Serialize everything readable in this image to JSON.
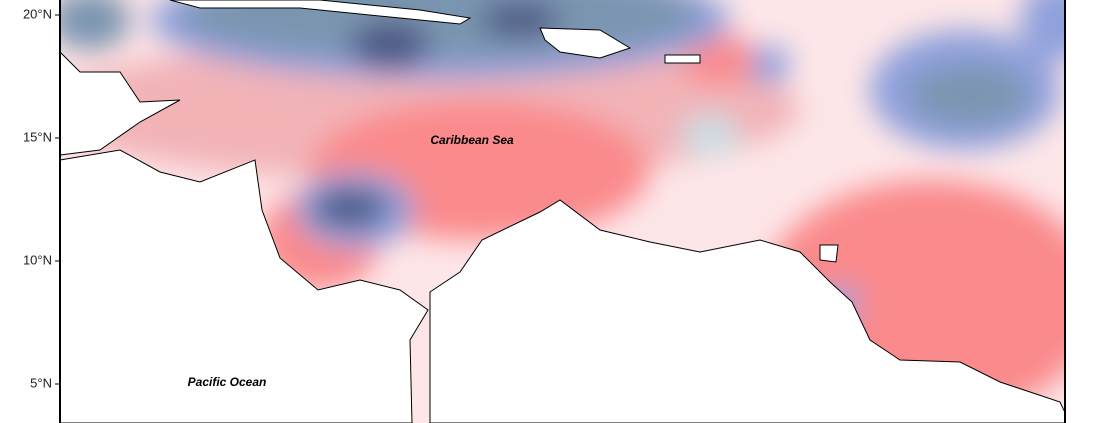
{
  "map": {
    "lat_labels": [
      "20°N",
      "15°N",
      "10°N",
      "5°N"
    ],
    "labels": {
      "sea": "Caribbean Sea",
      "ocean": "Pacific Ocean"
    }
  }
}
